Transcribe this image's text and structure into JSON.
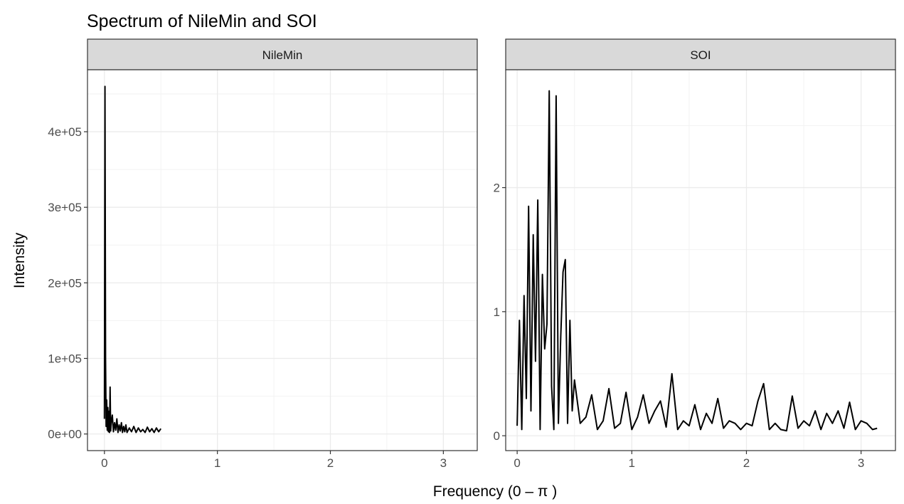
{
  "chart_data": {
    "type": "line",
    "title": "Spectrum of NileMin and SOI",
    "xlabel": "Frequency (0 – π )",
    "ylabel": "Intensity",
    "grid": true,
    "legend": "none",
    "line_color": "#000000",
    "panels": [
      {
        "name": "NileMin",
        "xlim": [
          -0.15,
          3.3
        ],
        "ylim": [
          -22000,
          482000
        ],
        "x_ticks": [
          0,
          1,
          2,
          3
        ],
        "x_tick_labels": [
          "0",
          "1",
          "2",
          "3"
        ],
        "y_ticks": [
          0,
          100000,
          200000,
          300000,
          400000
        ],
        "y_tick_labels": [
          "0e+00",
          "1e+05",
          "2e+05",
          "3e+05",
          "4e+05"
        ],
        "x": [
          0.0,
          0.005,
          0.01,
          0.015,
          0.02,
          0.025,
          0.03,
          0.035,
          0.04,
          0.045,
          0.05,
          0.055,
          0.06,
          0.07,
          0.08,
          0.09,
          0.1,
          0.11,
          0.12,
          0.13,
          0.14,
          0.15,
          0.16,
          0.17,
          0.18,
          0.19,
          0.2,
          0.22,
          0.24,
          0.26,
          0.28,
          0.3,
          0.32,
          0.34,
          0.36,
          0.38,
          0.4,
          0.42,
          0.44,
          0.46,
          0.48,
          0.5
        ],
        "y": [
          20000,
          460000,
          100000,
          10000,
          45000,
          5000,
          35000,
          3000,
          30000,
          2000,
          62000,
          4000,
          15000,
          25000,
          3000,
          15000,
          5000,
          20000,
          2000,
          12000,
          4000,
          15000,
          2000,
          10000,
          3000,
          12000,
          2000,
          8000,
          3000,
          10000,
          2000,
          8000,
          3000,
          6000,
          2000,
          9000,
          3000,
          7000,
          2000,
          8000,
          3000,
          7000
        ]
      },
      {
        "name": "SOI",
        "xlim": [
          -0.1,
          3.3
        ],
        "ylim": [
          -0.12,
          2.95
        ],
        "x_ticks": [
          0,
          1,
          2,
          3
        ],
        "x_tick_labels": [
          "0",
          "1",
          "2",
          "3"
        ],
        "y_ticks": [
          0,
          1,
          2
        ],
        "y_tick_labels": [
          "0",
          "1",
          "2"
        ],
        "x": [
          0.0,
          0.02,
          0.04,
          0.06,
          0.08,
          0.1,
          0.12,
          0.14,
          0.16,
          0.18,
          0.2,
          0.22,
          0.24,
          0.26,
          0.28,
          0.3,
          0.32,
          0.34,
          0.36,
          0.38,
          0.4,
          0.42,
          0.44,
          0.46,
          0.48,
          0.5,
          0.55,
          0.6,
          0.65,
          0.7,
          0.75,
          0.8,
          0.85,
          0.9,
          0.95,
          1.0,
          1.05,
          1.1,
          1.15,
          1.2,
          1.25,
          1.3,
          1.35,
          1.4,
          1.45,
          1.5,
          1.55,
          1.6,
          1.65,
          1.7,
          1.75,
          1.8,
          1.85,
          1.9,
          1.95,
          2.0,
          2.05,
          2.1,
          2.15,
          2.2,
          2.25,
          2.3,
          2.35,
          2.4,
          2.45,
          2.5,
          2.55,
          2.6,
          2.65,
          2.7,
          2.75,
          2.8,
          2.85,
          2.9,
          2.95,
          3.0,
          3.05,
          3.1,
          3.14
        ],
        "y": [
          0.08,
          0.93,
          0.05,
          1.13,
          0.3,
          1.85,
          0.2,
          1.62,
          0.6,
          1.9,
          0.05,
          1.3,
          0.7,
          0.9,
          2.78,
          0.4,
          0.05,
          2.74,
          0.1,
          0.8,
          1.32,
          1.42,
          0.1,
          0.93,
          0.2,
          0.45,
          0.1,
          0.15,
          0.33,
          0.05,
          0.12,
          0.38,
          0.06,
          0.1,
          0.35,
          0.05,
          0.15,
          0.33,
          0.1,
          0.2,
          0.28,
          0.07,
          0.5,
          0.05,
          0.12,
          0.08,
          0.25,
          0.05,
          0.18,
          0.1,
          0.3,
          0.06,
          0.12,
          0.1,
          0.05,
          0.1,
          0.08,
          0.28,
          0.42,
          0.05,
          0.1,
          0.05,
          0.04,
          0.32,
          0.06,
          0.12,
          0.08,
          0.2,
          0.05,
          0.18,
          0.1,
          0.2,
          0.06,
          0.27,
          0.05,
          0.12,
          0.1,
          0.05,
          0.06
        ]
      }
    ]
  }
}
